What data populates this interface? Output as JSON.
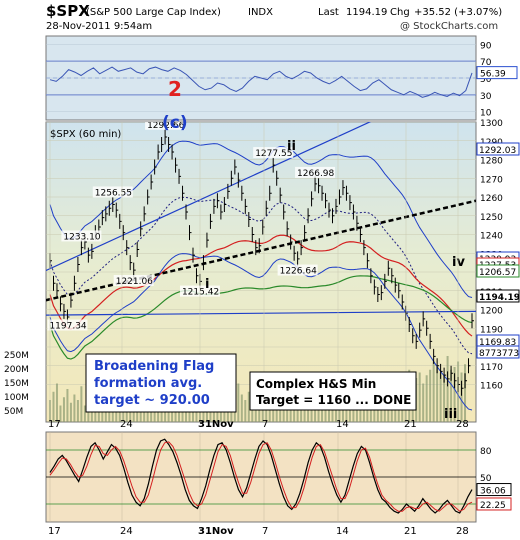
{
  "header": {
    "symbol": "$SPX",
    "name": "(S&P 500 Large Cap Index)",
    "exchange": "INDX",
    "date": "28-Nov-2011 9:54am",
    "last_label": "Last",
    "last": "1194.19",
    "chg_label": "Chg",
    "chg": "+35.52 (+3.07%)",
    "watermark": "@ StockCharts.com"
  },
  "colors": {
    "price": "#000000",
    "upper_bg": "#d4e6f0",
    "lower_bg": "#f5dfc0",
    "trendline": "#1f3fc8",
    "ma_red": "#d42020",
    "ma_green": "#2a8a2a",
    "neckline": "#000000",
    "annotation": "#1f3fc8",
    "wave_2": "#e02020"
  },
  "chart_data": [
    {
      "type": "line",
      "panel": "rsi",
      "ylim": [
        0,
        100
      ],
      "ticks": [
        10,
        30,
        50,
        70,
        90
      ],
      "ref_lines": [
        30,
        70
      ],
      "last_value": "56.39",
      "annotation": "2",
      "values": [
        48,
        46,
        52,
        60,
        57,
        53,
        58,
        62,
        55,
        59,
        63,
        58,
        60,
        62,
        57,
        55,
        61,
        63,
        60,
        58,
        62,
        59,
        54,
        47,
        40,
        36,
        38,
        44,
        42,
        37,
        34,
        38,
        46,
        52,
        50,
        48,
        55,
        58,
        52,
        49,
        53,
        58,
        56,
        50,
        46,
        43,
        47,
        52,
        46,
        40,
        35,
        37,
        44,
        48,
        42,
        36,
        33,
        30,
        34,
        31,
        27,
        29,
        33,
        30,
        28,
        32,
        29,
        35,
        56
      ]
    },
    {
      "type": "line",
      "panel": "price",
      "title": "$SPX (60 min)",
      "ylim": [
        1140,
        1300
      ],
      "y_ticks": [
        1160,
        1170,
        1180,
        1190,
        1200,
        1210,
        1220,
        1230,
        1240,
        1250,
        1260,
        1270,
        1280,
        1290,
        1300
      ],
      "x_tick_labels": [
        "17",
        "24",
        "31Nov",
        "7",
        "14",
        "21",
        "28"
      ],
      "volume_ticks": [
        "50M",
        "100M",
        "150M",
        "200M",
        "250M"
      ],
      "series_close": [
        1226,
        1214,
        1210,
        1203,
        1199,
        1196,
        1205,
        1214,
        1224,
        1233,
        1236,
        1229,
        1231,
        1241,
        1244,
        1249,
        1251,
        1254,
        1256,
        1253,
        1247,
        1241,
        1233,
        1225,
        1221,
        1232,
        1243,
        1251,
        1260,
        1268,
        1276,
        1284,
        1288,
        1292,
        1288,
        1284,
        1277,
        1271,
        1262,
        1252,
        1241,
        1229,
        1218,
        1215,
        1225,
        1237,
        1247,
        1255,
        1258,
        1252,
        1256,
        1263,
        1270,
        1276,
        1269,
        1262,
        1255,
        1248,
        1240,
        1233,
        1234,
        1244,
        1254,
        1262,
        1277,
        1270,
        1261,
        1252,
        1243,
        1236,
        1230,
        1227,
        1233,
        1241,
        1250,
        1259,
        1267,
        1266,
        1262,
        1258,
        1253,
        1250,
        1255,
        1260,
        1265,
        1262,
        1257,
        1252,
        1246,
        1240,
        1233,
        1226,
        1218,
        1212,
        1208,
        1209,
        1215,
        1222,
        1218,
        1213,
        1210,
        1204,
        1198,
        1192,
        1186,
        1183,
        1189,
        1195,
        1190,
        1183,
        1175,
        1170,
        1167,
        1165,
        1163,
        1166,
        1162,
        1160,
        1158,
        1162,
        1170,
        1194
      ],
      "labels": [
        {
          "text": "1233.10",
          "value": 1233.1,
          "i": 9
        },
        {
          "text": "1256.55",
          "value": 1256.55,
          "i": 18
        },
        {
          "text": "1197.34",
          "value": 1197.34,
          "i": 5
        },
        {
          "text": "1221.06",
          "value": 1221.06,
          "i": 24
        },
        {
          "text": "1292.66",
          "value": 1292.66,
          "i": 33
        },
        {
          "text": "1215.42",
          "value": 1215.42,
          "i": 43
        },
        {
          "text": "1277.55",
          "value": 1277.55,
          "i": 64
        },
        {
          "text": "1226.64",
          "value": 1226.64,
          "i": 71
        },
        {
          "text": "1266.98",
          "value": 1266.98,
          "i": 76
        }
      ],
      "wave_labels": [
        "(c)",
        "ii",
        "i",
        "iv",
        "iii"
      ],
      "last_values": [
        "1292.03",
        "1230.93",
        "1227.53",
        "1206.57",
        "1194.19",
        "1169.83",
        "8773773"
      ]
    },
    {
      "type": "line",
      "panel": "stochastic",
      "ylim": [
        0,
        100
      ],
      "ticks": [
        20,
        50,
        80
      ],
      "last_values": [
        "36.06",
        "22.25"
      ],
      "k": [
        55,
        62,
        70,
        74,
        68,
        60,
        52,
        45,
        58,
        72,
        84,
        88,
        80,
        70,
        78,
        86,
        82,
        74,
        60,
        44,
        30,
        22,
        18,
        26,
        42,
        62,
        80,
        90,
        92,
        86,
        78,
        66,
        52,
        36,
        24,
        18,
        15,
        26,
        40,
        58,
        74,
        86,
        88,
        80,
        66,
        50,
        36,
        28,
        38,
        54,
        70,
        84,
        90,
        86,
        74,
        58,
        42,
        28,
        18,
        14,
        20,
        32,
        48,
        66,
        80,
        88,
        84,
        72,
        56,
        42,
        30,
        22,
        30,
        46,
        62,
        76,
        84,
        80,
        66,
        50,
        36,
        26,
        22,
        16,
        12,
        10,
        14,
        20,
        16,
        12,
        18,
        26,
        20,
        14,
        10,
        14,
        20,
        24,
        18,
        12,
        10,
        18,
        28,
        36
      ],
      "d": [
        52,
        58,
        65,
        71,
        70,
        64,
        56,
        50,
        52,
        62,
        75,
        85,
        84,
        76,
        74,
        80,
        84,
        79,
        68,
        54,
        40,
        28,
        22,
        22,
        30,
        46,
        64,
        80,
        88,
        89,
        84,
        74,
        60,
        46,
        32,
        22,
        18,
        20,
        30,
        46,
        62,
        78,
        86,
        84,
        74,
        58,
        44,
        32,
        32,
        44,
        60,
        76,
        86,
        88,
        80,
        66,
        50,
        36,
        24,
        16,
        16,
        24,
        38,
        56,
        72,
        84,
        86,
        78,
        64,
        50,
        36,
        26,
        26,
        36,
        52,
        68,
        80,
        82,
        72,
        56,
        42,
        30,
        24,
        20,
        15,
        12,
        12,
        16,
        17,
        15,
        15,
        20,
        22,
        18,
        14,
        12,
        16,
        20,
        20,
        16,
        12,
        14,
        20,
        22
      ]
    }
  ],
  "annotations": {
    "flag_lines": [
      "Broadening Flag",
      "formation avg.",
      "target ~ 920.00"
    ],
    "hs_lines": [
      "Complex H&S Min",
      "Target = 1160 ... DONE"
    ]
  }
}
